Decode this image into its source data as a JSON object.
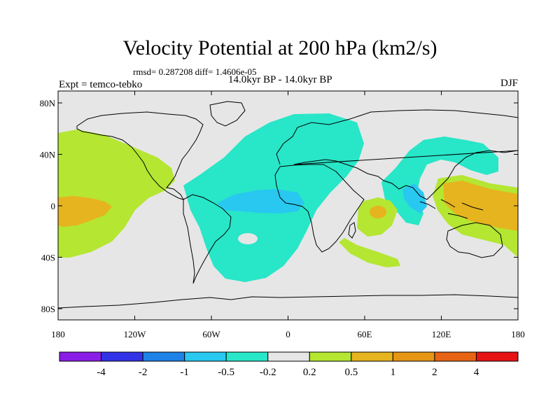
{
  "title": "Velocity Potential at 200 hPa (km2/s)",
  "stats": "rmsd= 0.287208 diff= 1.4606e-05",
  "period": "14.0kyr BP - 14.0kyr BP",
  "experiment": "Expt = temco-tebko",
  "season": "DJF",
  "axes": {
    "lat_labels": [
      "80N",
      "40N",
      "0",
      "40S",
      "80S"
    ],
    "lat_values": [
      80,
      40,
      0,
      -40,
      -80
    ],
    "lon_labels": [
      "180",
      "120W",
      "60W",
      "0",
      "60E",
      "120E",
      "180"
    ],
    "lon_values": [
      -180,
      -120,
      -60,
      0,
      60,
      120,
      180
    ]
  },
  "colorbar": {
    "colors": [
      "#8a1ee6",
      "#3232e6",
      "#1e82e6",
      "#28c8f0",
      "#28e6c8",
      "#e6e6e6",
      "#b4e632",
      "#e6b41e",
      "#e69614",
      "#e66414",
      "#e61414"
    ],
    "labels": [
      "-4",
      "-2",
      "-1",
      "-0.5",
      "-0.2",
      "0.2",
      "0.5",
      "1",
      "2",
      "4"
    ]
  },
  "colors": {
    "background": "#e6e6e6",
    "neg_light": "#28e6c8",
    "neg_mid": "#28c8f0",
    "pos_light": "#b4e632",
    "pos_mid": "#e6b41e"
  }
}
